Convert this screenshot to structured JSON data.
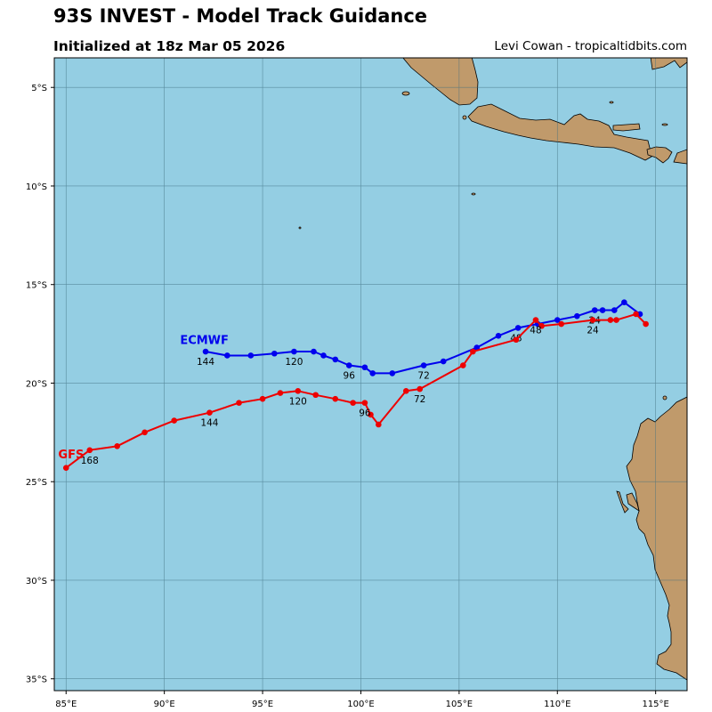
{
  "header": {
    "title": "93S INVEST - Model Track Guidance",
    "subtitle": "Initialized at 18z Mar 05 2026",
    "credit": "Levi Cowan - tropicaltidbits.com"
  },
  "colors": {
    "ocean": "#94cee3",
    "land": "#c09a6b",
    "ecmwf": "#0000ee",
    "gfs": "#ee0000",
    "grid": "#3f6f80"
  },
  "chart_data": {
    "type": "map-track",
    "x_ticks": [
      "85°E",
      "90°E",
      "95°E",
      "100°E",
      "105°E",
      "110°E",
      "115°E"
    ],
    "y_ticks": [
      "5°S",
      "10°S",
      "15°S",
      "20°S",
      "25°S",
      "30°S",
      "35°S"
    ],
    "xlim": [
      84.4,
      116.6
    ],
    "ylim": [
      -35.6,
      -3.5
    ],
    "models": [
      {
        "name": "ECMWF",
        "color": "#0000ee",
        "points": [
          [
            114.2,
            -16.5
          ],
          [
            113.4,
            -15.9
          ],
          [
            112.9,
            -16.3
          ],
          [
            112.3,
            -16.3
          ],
          [
            111.9,
            -16.3
          ],
          [
            111.0,
            -16.6
          ],
          [
            110.0,
            -16.8
          ],
          [
            109.0,
            -17.0
          ],
          [
            108.0,
            -17.2
          ],
          [
            107.0,
            -17.6
          ],
          [
            105.9,
            -18.2
          ],
          [
            104.2,
            -18.9
          ],
          [
            103.2,
            -19.1
          ],
          [
            101.6,
            -19.5
          ],
          [
            100.6,
            -19.5
          ],
          [
            100.2,
            -19.2
          ],
          [
            99.4,
            -19.1
          ],
          [
            98.7,
            -18.8
          ],
          [
            98.1,
            -18.6
          ],
          [
            97.6,
            -18.4
          ],
          [
            96.6,
            -18.4
          ],
          [
            95.6,
            -18.5
          ],
          [
            94.4,
            -18.6
          ],
          [
            93.2,
            -18.6
          ],
          [
            92.1,
            -18.4
          ]
        ],
        "hour_labels": [
          {
            "text": "24",
            "lon": 111.9,
            "lat": -16.3
          },
          {
            "text": "48",
            "lon": 107.9,
            "lat": -17.2
          },
          {
            "text": "72",
            "lon": 103.2,
            "lat": -19.1
          },
          {
            "text": "96",
            "lon": 99.4,
            "lat": -19.1
          },
          {
            "text": "120",
            "lon": 96.6,
            "lat": -18.4
          },
          {
            "text": "144",
            "lon": 92.1,
            "lat": -18.4
          }
        ],
        "label_pos": {
          "lon": 90.8,
          "lat": -17.8
        }
      },
      {
        "name": "GFS",
        "color": "#ee0000",
        "points": [
          [
            114.5,
            -17.0
          ],
          [
            114.0,
            -16.5
          ],
          [
            113.0,
            -16.8
          ],
          [
            112.7,
            -16.8
          ],
          [
            111.8,
            -16.8
          ],
          [
            110.2,
            -17.0
          ],
          [
            109.2,
            -17.1
          ],
          [
            108.9,
            -16.8
          ],
          [
            107.9,
            -17.8
          ],
          [
            105.7,
            -18.4
          ],
          [
            105.2,
            -19.1
          ],
          [
            103.0,
            -20.3
          ],
          [
            102.3,
            -20.4
          ],
          [
            100.9,
            -22.1
          ],
          [
            100.5,
            -21.6
          ],
          [
            100.2,
            -21.0
          ],
          [
            99.6,
            -21.0
          ],
          [
            98.7,
            -20.8
          ],
          [
            97.7,
            -20.6
          ],
          [
            96.8,
            -20.4
          ],
          [
            95.9,
            -20.5
          ],
          [
            95.0,
            -20.8
          ],
          [
            93.8,
            -21.0
          ],
          [
            92.3,
            -21.5
          ],
          [
            90.5,
            -21.9
          ],
          [
            89.0,
            -22.5
          ],
          [
            87.6,
            -23.2
          ],
          [
            86.2,
            -23.4
          ],
          [
            85.0,
            -24.3
          ]
        ],
        "hour_labels": [
          {
            "text": "24",
            "lon": 111.8,
            "lat": -16.8
          },
          {
            "text": "48",
            "lon": 108.9,
            "lat": -16.8
          },
          {
            "text": "72",
            "lon": 103.0,
            "lat": -20.3
          },
          {
            "text": "96",
            "lon": 100.2,
            "lat": -21.0
          },
          {
            "text": "120",
            "lon": 96.8,
            "lat": -20.4
          },
          {
            "text": "144",
            "lon": 92.3,
            "lat": -21.5
          },
          {
            "text": "168",
            "lon": 86.2,
            "lat": -23.4
          }
        ],
        "label_pos": {
          "lon": 84.6,
          "lat": -23.6
        }
      }
    ]
  }
}
